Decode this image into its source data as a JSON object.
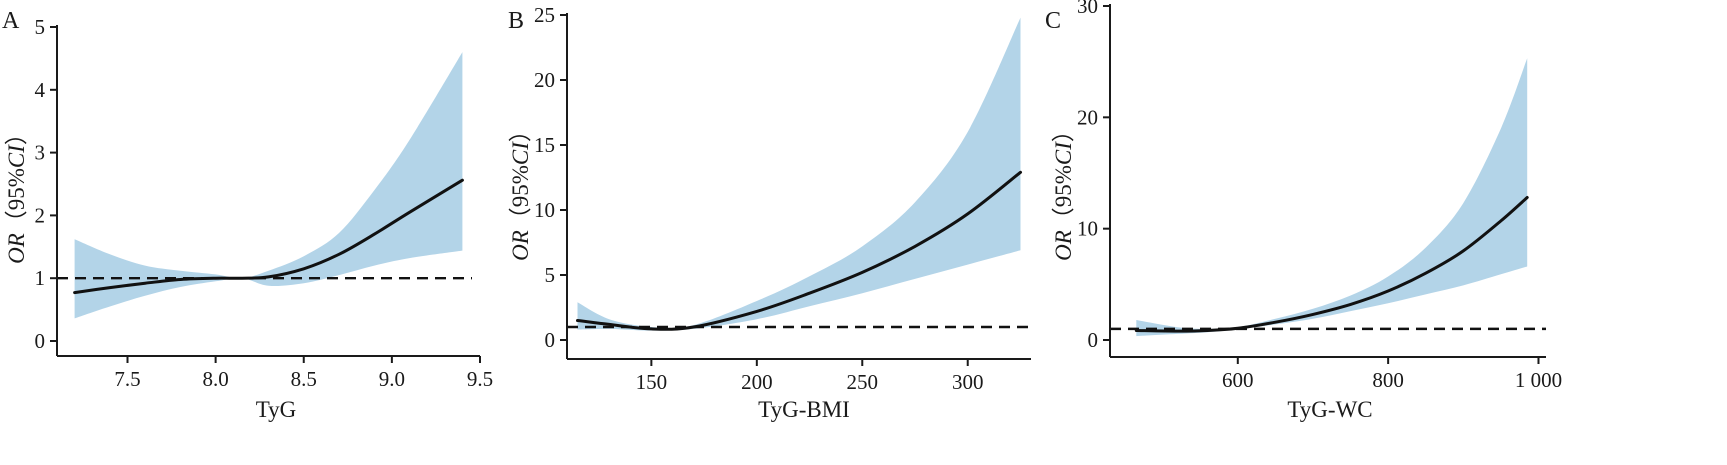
{
  "colors": {
    "ci_band": "#b3d4e8",
    "curve": "#111111",
    "reference": "#111111",
    "axis": "#1a1a1a"
  },
  "chart_data": [
    {
      "panel": "A",
      "type": "line",
      "xlabel": "TyG",
      "ylabel_main": "OR",
      "ylabel_paren": "（95%",
      "ylabel_ci": "CI",
      "ylabel_close": "）",
      "xlim": [
        7.1,
        9.5
      ],
      "ylim": [
        0,
        5
      ],
      "xticks": [
        7.5,
        8.0,
        8.5,
        9.0,
        9.5
      ],
      "xtick_labels": [
        "7.5",
        "8.0",
        "8.5",
        "9.0",
        "9.5"
      ],
      "yticks": [
        0,
        1,
        2,
        3,
        4,
        5
      ],
      "ytick_labels": [
        "0",
        "1",
        "2",
        "3",
        "4",
        "5"
      ],
      "reference_line": 1,
      "x": [
        7.2,
        7.4,
        7.6,
        7.8,
        8.0,
        8.15,
        8.3,
        8.5,
        8.7,
        8.9,
        9.1,
        9.4
      ],
      "or": [
        0.77,
        0.85,
        0.92,
        0.98,
        1.0,
        1.0,
        1.02,
        1.15,
        1.38,
        1.7,
        2.05,
        2.56
      ],
      "lower": [
        0.36,
        0.55,
        0.72,
        0.86,
        0.95,
        1.0,
        0.88,
        0.92,
        1.05,
        1.2,
        1.32,
        1.44
      ],
      "upper": [
        1.62,
        1.38,
        1.2,
        1.12,
        1.06,
        1.0,
        1.12,
        1.35,
        1.72,
        2.4,
        3.2,
        4.6
      ]
    },
    {
      "panel": "B",
      "type": "line",
      "xlabel": "TyG-BMI",
      "ylabel_main": "OR",
      "ylabel_paren": "（95%",
      "ylabel_ci": "CI",
      "ylabel_close": "）",
      "xlim": [
        110,
        330
      ],
      "ylim": [
        0,
        25
      ],
      "xticks": [
        150,
        200,
        250,
        300
      ],
      "xtick_labels": [
        "150",
        "200",
        "250",
        "300"
      ],
      "yticks": [
        0,
        5,
        10,
        15,
        20,
        25
      ],
      "ytick_labels": [
        "0",
        "5",
        "10",
        "15",
        "20",
        "25"
      ],
      "reference_line": 1,
      "x": [
        115,
        130,
        150,
        170,
        200,
        225,
        250,
        275,
        300,
        325
      ],
      "or": [
        1.5,
        1.2,
        0.85,
        1.0,
        2.2,
        3.6,
        5.2,
        7.2,
        9.7,
        12.9
      ],
      "lower": [
        0.8,
        0.85,
        0.72,
        0.85,
        1.6,
        2.6,
        3.6,
        4.7,
        5.8,
        6.9
      ],
      "upper": [
        2.9,
        1.6,
        1.0,
        1.15,
        3.0,
        4.9,
        7.2,
        10.6,
        16.0,
        24.8
      ]
    },
    {
      "panel": "C",
      "type": "line",
      "xlabel": "TyG-WC",
      "ylabel_main": "OR",
      "ylabel_paren": "（95%",
      "ylabel_ci": "CI",
      "ylabel_close": "）",
      "xlim": [
        430,
        1010
      ],
      "ylim": [
        0,
        30
      ],
      "xticks": [
        600,
        800,
        1000
      ],
      "xtick_labels": [
        "600",
        "800",
        "1 000"
      ],
      "yticks": [
        0,
        10,
        20,
        30
      ],
      "ytick_labels": [
        "0",
        "10",
        "20",
        "30"
      ],
      "reference_line": 1,
      "x": [
        465,
        520,
        560,
        600,
        650,
        700,
        750,
        800,
        850,
        900,
        950,
        985
      ],
      "or": [
        0.85,
        0.8,
        0.85,
        1.05,
        1.6,
        2.3,
        3.2,
        4.4,
        6.0,
        8.0,
        10.7,
        12.8
      ],
      "lower": [
        0.35,
        0.55,
        0.7,
        0.95,
        1.4,
        1.9,
        2.6,
        3.3,
        4.1,
        4.9,
        5.9,
        6.6
      ],
      "upper": [
        1.8,
        1.15,
        1.0,
        1.15,
        1.9,
        2.8,
        4.0,
        5.7,
        8.3,
        12.3,
        19.0,
        25.3
      ]
    }
  ]
}
